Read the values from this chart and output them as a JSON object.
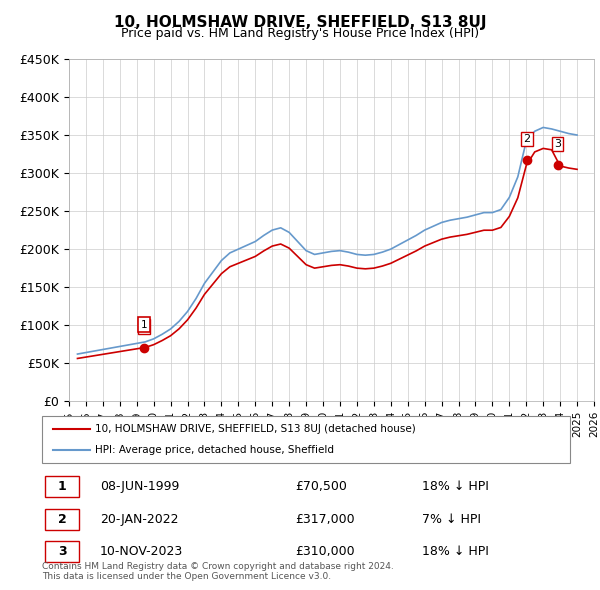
{
  "title": "10, HOLMSHAW DRIVE, SHEFFIELD, S13 8UJ",
  "subtitle": "Price paid vs. HM Land Registry's House Price Index (HPI)",
  "ylabel_ticks": [
    "£0",
    "£50K",
    "£100K",
    "£150K",
    "£200K",
    "£250K",
    "£300K",
    "£350K",
    "£400K",
    "£450K"
  ],
  "ytick_values": [
    0,
    50000,
    100000,
    150000,
    200000,
    250000,
    300000,
    350000,
    400000,
    450000
  ],
  "xmin": 1995,
  "xmax": 2026,
  "ymin": 0,
  "ymax": 450000,
  "hpi_color": "#6699cc",
  "property_color": "#cc0000",
  "legend_property": "10, HOLMSHAW DRIVE, SHEFFIELD, S13 8UJ (detached house)",
  "legend_hpi": "HPI: Average price, detached house, Sheffield",
  "transactions": [
    {
      "id": 1,
      "date": "08-JUN-1999",
      "price": 70500,
      "hpi_diff": "18% ↓ HPI",
      "year": 1999.44
    },
    {
      "id": 2,
      "date": "20-JAN-2022",
      "price": 317000,
      "hpi_diff": "7% ↓ HPI",
      "year": 2022.05
    },
    {
      "id": 3,
      "date": "10-NOV-2023",
      "price": 310000,
      "hpi_diff": "18% ↓ HPI",
      "year": 2023.86
    }
  ],
  "footer": "Contains HM Land Registry data © Crown copyright and database right 2024.\nThis data is licensed under the Open Government Licence v3.0.",
  "background_color": "#ffffff",
  "grid_color": "#cccccc"
}
